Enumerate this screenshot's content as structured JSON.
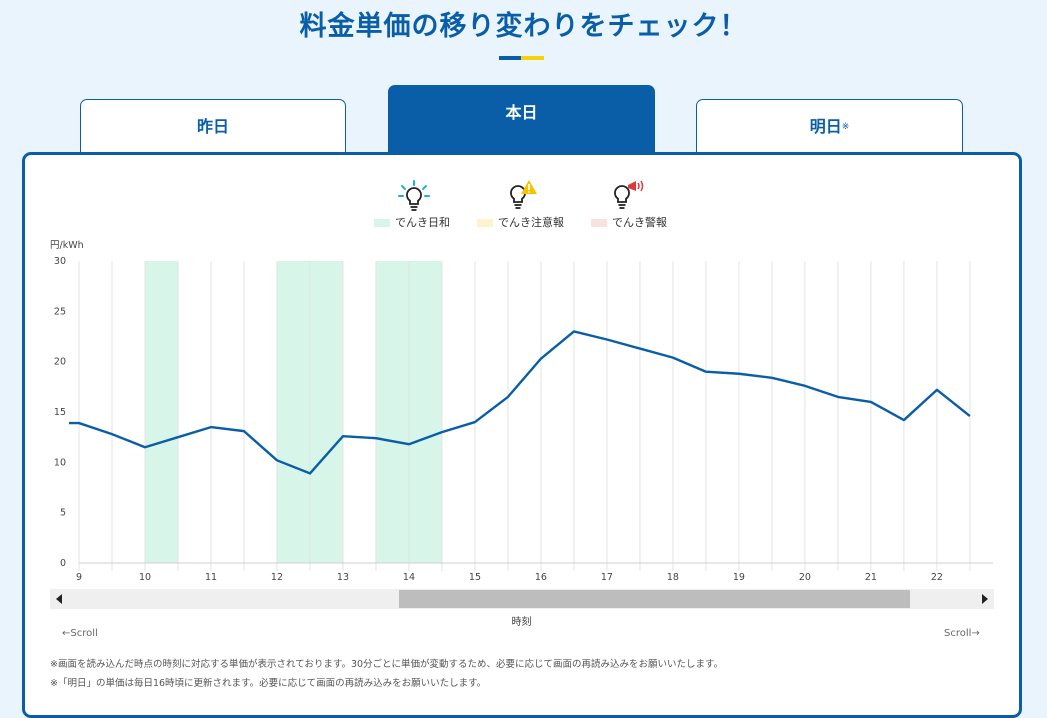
{
  "header": {
    "title": "料金単価の移り変わりをチェック！",
    "accent_colors": [
      "#0a5ea8",
      "#f5d20a"
    ]
  },
  "tabs": [
    {
      "label": "昨日",
      "active": false
    },
    {
      "label": "本日",
      "active": true
    },
    {
      "label": "明日",
      "mark": "※",
      "active": false
    }
  ],
  "legend": [
    {
      "label": "でんき日和",
      "icon": "lightbulb-rays-icon",
      "color": "#d7f5e8"
    },
    {
      "label": "でんき注意報",
      "icon": "lightbulb-warning-icon",
      "color": "#fdf3cc"
    },
    {
      "label": "でんき警報",
      "icon": "lightbulb-megaphone-icon",
      "color": "#fbe0e0"
    }
  ],
  "chart_data": {
    "type": "line",
    "unit_label": "円/kWh",
    "xlabel": "時刻",
    "ylim": [
      0,
      30
    ],
    "yticks": [
      0,
      5,
      10,
      15,
      20,
      25,
      30
    ],
    "xlim": [
      9,
      22.85
    ],
    "xticks": [
      9,
      10,
      11,
      12,
      13,
      14,
      15,
      16,
      17,
      18,
      19,
      20,
      21,
      22
    ],
    "grid": true,
    "line_color": "#0a5ea8",
    "x": [
      9,
      9.5,
      10,
      10.5,
      11,
      11.5,
      12,
      12.5,
      13,
      13.5,
      14,
      14.5,
      15,
      15.5,
      16,
      16.5,
      17,
      17.5,
      18,
      18.5,
      19,
      19.5,
      20,
      20.5,
      21,
      21.5,
      22,
      22.5
    ],
    "values": [
      13.9,
      12.8,
      11.5,
      12.5,
      13.5,
      13.1,
      10.2,
      8.9,
      12.6,
      12.4,
      11.8,
      13.0,
      14.0,
      16.5,
      20.3,
      23.0,
      22.2,
      21.3,
      20.4,
      19.0,
      18.8,
      18.4,
      17.6,
      16.5,
      16.0,
      14.2,
      17.2,
      14.6
    ],
    "highlight_bands": [
      {
        "type": "でんき日和",
        "start": 10,
        "end": 10.5
      },
      {
        "type": "でんき日和",
        "start": 12,
        "end": 13
      },
      {
        "type": "でんき日和",
        "start": 13.5,
        "end": 14.5
      }
    ]
  },
  "scroll": {
    "position": 0.37,
    "left_hint": "←Scroll",
    "right_hint": "Scroll→"
  },
  "notes": [
    "※画面を読み込んだ時点の時刻に対応する単価が表示されております。30分ごとに単価が変動するため、必要に応じて画面の再読み込みをお願いいたします。",
    "※「明日」の単価は毎日16時頃に更新されます。必要に応じて画面の再読み込みをお願いいたします。"
  ]
}
